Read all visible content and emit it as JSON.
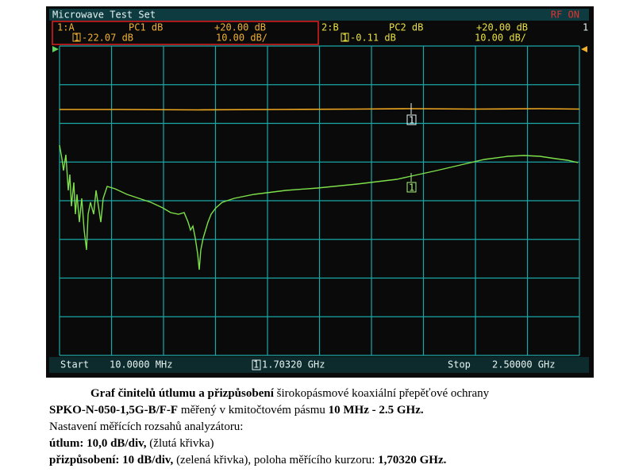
{
  "screen": {
    "title": "Microwave Test Set",
    "status": "RF ON",
    "channel_a": {
      "id": "1:A",
      "param": "PC1 dB",
      "ref": "+20.00 dB",
      "marker": "-22.07 dB",
      "scale": "10.00 dB/"
    },
    "channel_b": {
      "id": "2:B",
      "param": "PC2 dB",
      "ref": "+20.00 dB",
      "marker": "-0.11 dB",
      "scale": "10.00 dB/"
    },
    "channel_number": "1",
    "marker_id": "1",
    "start": {
      "label": "Start",
      "value": "10.0000 MHz"
    },
    "marker_freq": "1.70320 GHz",
    "stop": {
      "label": "Stop",
      "value": "2.50000 GHz"
    }
  },
  "caption": {
    "lines": [
      [
        {
          "text": "Graf činitelů útlumu a přizpůsobení",
          "bold": true
        },
        {
          "text": " širokopásmové koaxiální přepěťové ochrany",
          "bold": false
        }
      ],
      [
        {
          "text": "SPKO-N-050-1,5G-B/F-F",
          "bold": true
        },
        {
          "text": " měřený v kmitočtovém pásmu ",
          "bold": false
        },
        {
          "text": "10 MHz - 2.5 GHz.",
          "bold": true
        }
      ],
      [
        {
          "text": "Nastavení měřících rozsahů analyzátoru:",
          "bold": false
        }
      ],
      [
        {
          "text": "útlum: 10,0 dB/div,",
          "bold": true
        },
        {
          "text": " (žlutá křivka)",
          "bold": false
        }
      ],
      [
        {
          "text": "přizpůsobení: 10 dB/div,",
          "bold": true
        },
        {
          "text": " (zelená křivka), poloha měřícího kurzoru: ",
          "bold": false
        },
        {
          "text": "1,70320 GHz.",
          "bold": true
        }
      ]
    ]
  }
}
